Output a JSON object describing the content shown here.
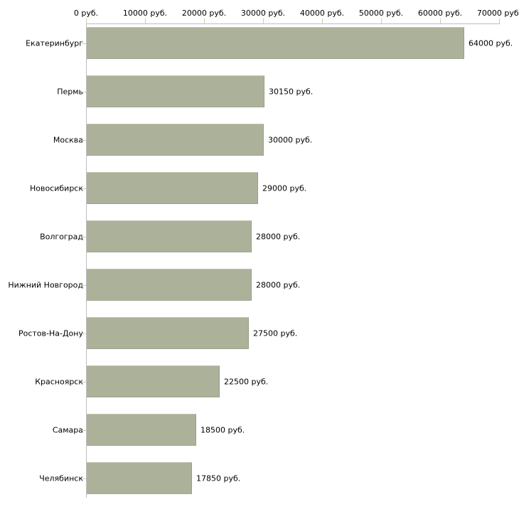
{
  "chart_data": {
    "type": "bar",
    "orientation": "horizontal",
    "title": "",
    "xlabel": "",
    "ylabel": "",
    "categories": [
      "Екатеринбург",
      "Пермь",
      "Москва",
      "Новосибирск",
      "Волгоград",
      "Нижний Новгород",
      "Ростов-На-Дону",
      "Красноярск",
      "Самара",
      "Челябинск"
    ],
    "values": [
      64000,
      30150,
      30000,
      29000,
      28000,
      28000,
      27500,
      22500,
      18500,
      17850
    ],
    "value_labels": [
      "64000 руб.",
      "30150 руб.",
      "30000 руб.",
      "29000 руб.",
      "28000 руб.",
      "28000 руб.",
      "27500 руб.",
      "22500 руб.",
      "18500 руб.",
      "17850 руб."
    ],
    "x_tick_values": [
      0,
      10000,
      20000,
      30000,
      40000,
      50000,
      60000,
      70000
    ],
    "x_tick_labels": [
      "0 руб.",
      "10000 руб.",
      "20000 руб.",
      "30000 руб.",
      "40000 руб.",
      "50000 руб.",
      "60000 руб.",
      "70000 руб."
    ],
    "xlim": [
      0,
      70000
    ],
    "grid": false,
    "legend": false,
    "currency_unit": "руб.",
    "colors": {
      "bar_fill": "#abb299",
      "bar_edge_dark": "#99a287",
      "bar_edge_light": "#c2c8b3",
      "axis_line": "#bdbdbd",
      "tick": "#d0cdaa",
      "text": "#000000",
      "background": "#ffffff"
    }
  }
}
